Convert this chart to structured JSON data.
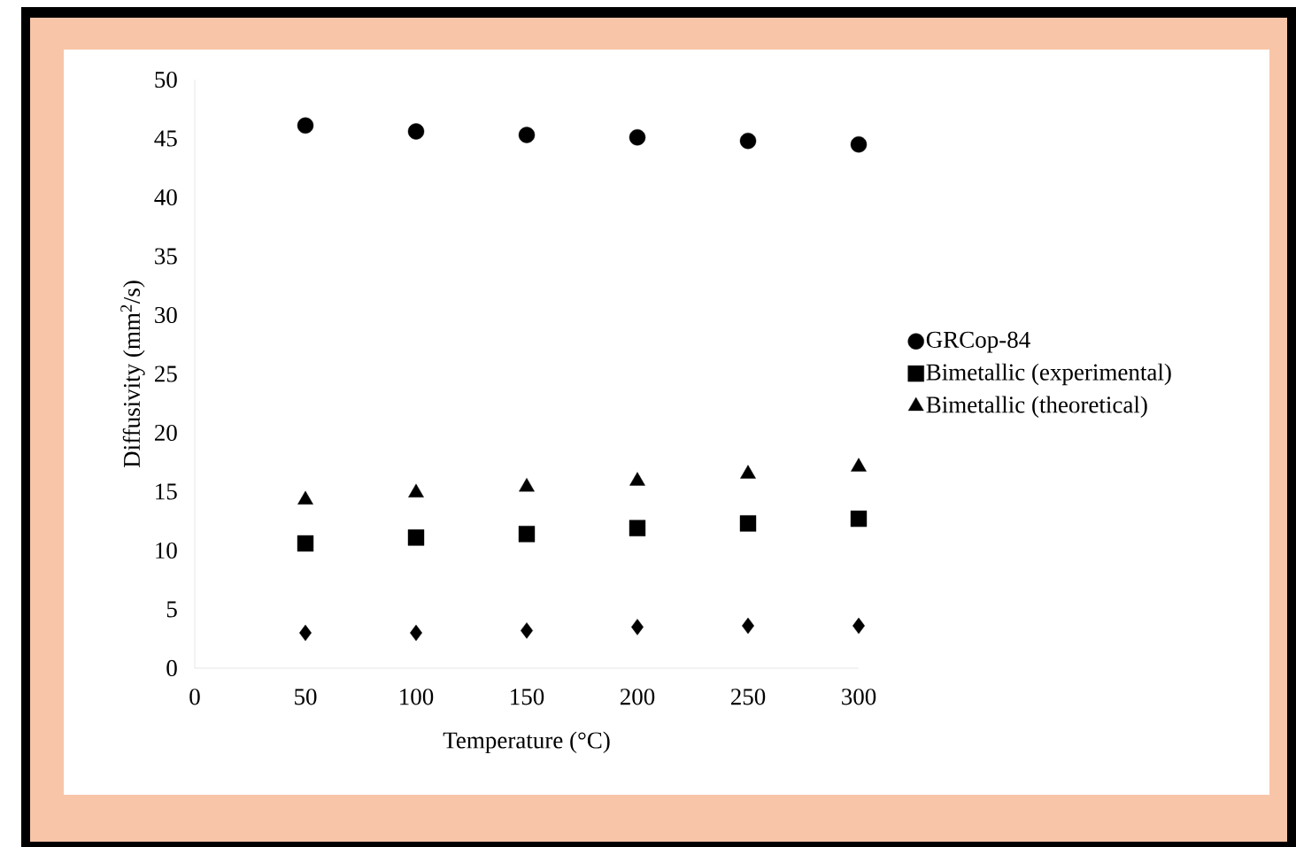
{
  "chart_data": {
    "type": "scatter",
    "xlabel": "Temperature (°C)",
    "ylabel": "Diffusivity (mm$^{2}$/s)",
    "x": [
      50,
      100,
      150,
      200,
      250,
      300
    ],
    "series": [
      {
        "color": "#000000",
        "marker": "diamond",
        "values": [
          3.0,
          3.0,
          3.2,
          3.5,
          3.6,
          3.6
        ]
      },
      {
        "name": "GRCop-84",
        "color": "#000000",
        "marker": "circle",
        "values": [
          46.1,
          45.6,
          45.3,
          45.1,
          44.8,
          44.5
        ]
      },
      {
        "name": "Bimetallic (experimental)",
        "color": "#000000",
        "marker": "square",
        "values": [
          10.6,
          11.1,
          11.4,
          11.9,
          12.3,
          12.7
        ]
      },
      {
        "name": "Bimetallic (theoretical)",
        "color": "#000000",
        "marker": "triangle",
        "values": [
          14.3,
          14.9,
          15.4,
          15.9,
          16.5,
          17.1
        ]
      }
    ],
    "xlim": [
      0,
      300
    ],
    "xticks": [
      0,
      50,
      100,
      150,
      200,
      250,
      300
    ],
    "ylim": [
      0,
      50
    ],
    "yticks": [
      0,
      5,
      10,
      15,
      20,
      25,
      30,
      35,
      40,
      45,
      50
    ],
    "grid": false,
    "legend": "right"
  }
}
